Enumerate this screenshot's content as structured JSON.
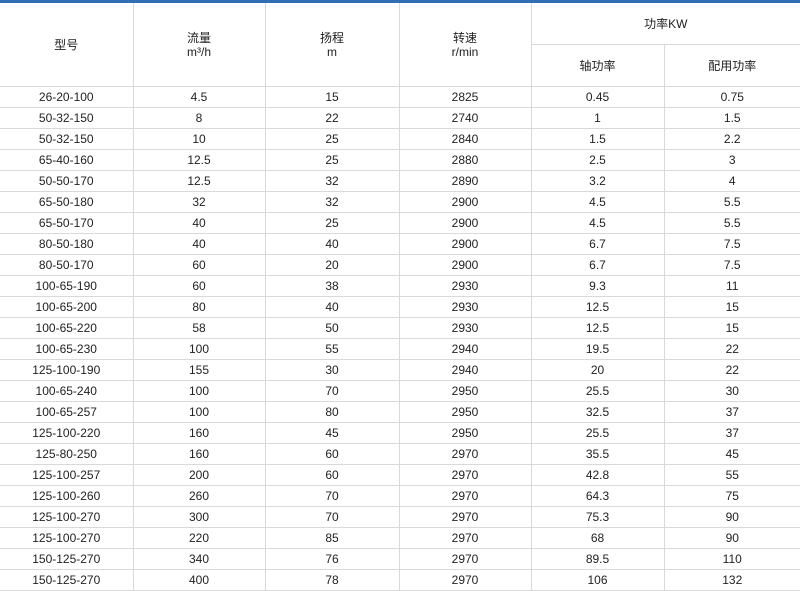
{
  "accent_color": "#2f6db5",
  "header": {
    "model": "型号",
    "flow": "流量",
    "flow_unit": "m³/h",
    "head": "扬程",
    "head_unit": "m",
    "speed": "转速",
    "speed_unit": "r/min",
    "power": "功率KW",
    "shaft_power": "轴功率",
    "motor_power": "配用功率"
  },
  "rows": [
    [
      "26-20-100",
      "4.5",
      "15",
      "2825",
      "0.45",
      "0.75"
    ],
    [
      "50-32-150",
      "8",
      "22",
      "2740",
      "1",
      "1.5"
    ],
    [
      "50-32-150",
      "10",
      "25",
      "2840",
      "1.5",
      "2.2"
    ],
    [
      "65-40-160",
      "12.5",
      "25",
      "2880",
      "2.5",
      "3"
    ],
    [
      "50-50-170",
      "12.5",
      "32",
      "2890",
      "3.2",
      "4"
    ],
    [
      "65-50-180",
      "32",
      "32",
      "2900",
      "4.5",
      "5.5"
    ],
    [
      "65-50-170",
      "40",
      "25",
      "2900",
      "4.5",
      "5.5"
    ],
    [
      "80-50-180",
      "40",
      "40",
      "2900",
      "6.7",
      "7.5"
    ],
    [
      "80-50-170",
      "60",
      "20",
      "2900",
      "6.7",
      "7.5"
    ],
    [
      "100-65-190",
      "60",
      "38",
      "2930",
      "9.3",
      "11"
    ],
    [
      "100-65-200",
      "80",
      "40",
      "2930",
      "12.5",
      "15"
    ],
    [
      "100-65-220",
      "58",
      "50",
      "2930",
      "12.5",
      "15"
    ],
    [
      "100-65-230",
      "100",
      "55",
      "2940",
      "19.5",
      "22"
    ],
    [
      "125-100-190",
      "155",
      "30",
      "2940",
      "20",
      "22"
    ],
    [
      "100-65-240",
      "100",
      "70",
      "2950",
      "25.5",
      "30"
    ],
    [
      "100-65-257",
      "100",
      "80",
      "2950",
      "32.5",
      "37"
    ],
    [
      "125-100-220",
      "160",
      "45",
      "2950",
      "25.5",
      "37"
    ],
    [
      "125-80-250",
      "160",
      "60",
      "2970",
      "35.5",
      "45"
    ],
    [
      "125-100-257",
      "200",
      "60",
      "2970",
      "42.8",
      "55"
    ],
    [
      "125-100-260",
      "260",
      "70",
      "2970",
      "64.3",
      "75"
    ],
    [
      "125-100-270",
      "300",
      "70",
      "2970",
      "75.3",
      "90"
    ],
    [
      "125-100-270",
      "220",
      "85",
      "2970",
      "68",
      "90"
    ],
    [
      "150-125-270",
      "340",
      "76",
      "2970",
      "89.5",
      "110"
    ],
    [
      "150-125-270",
      "400",
      "78",
      "2970",
      "106",
      "132"
    ]
  ]
}
